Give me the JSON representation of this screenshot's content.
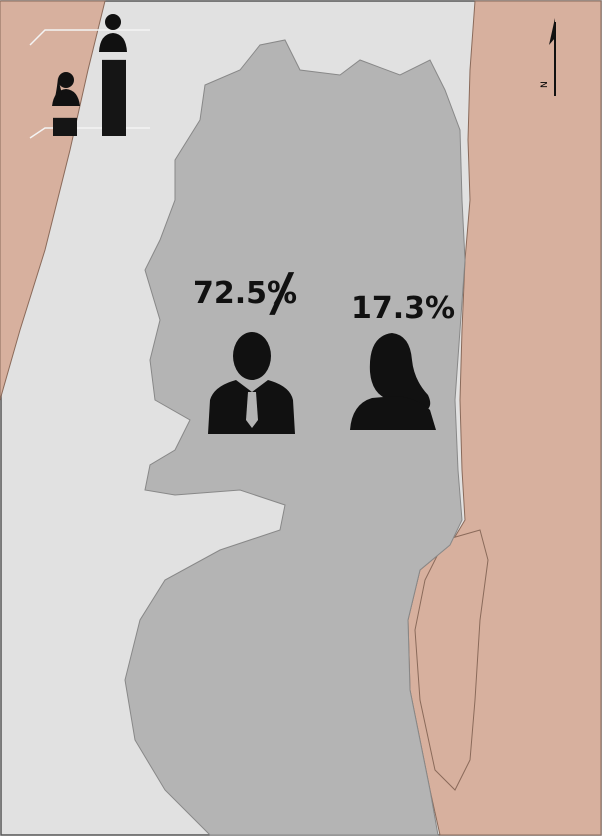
{
  "stats": {
    "values": [
      72.5,
      17.3
    ],
    "value_labels": [
      "72.5%",
      "17.3%"
    ],
    "separator": "/"
  },
  "north_arrow": {
    "label": "N"
  }
}
